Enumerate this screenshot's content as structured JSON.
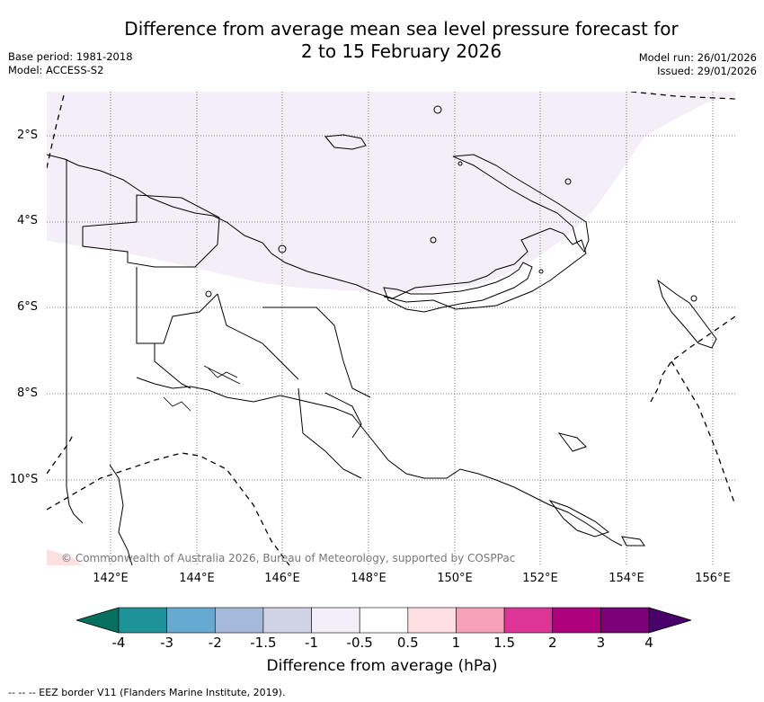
{
  "title": {
    "line1": "Difference from average mean sea level pressure forecast for",
    "line2": "2 to 15 February 2026"
  },
  "meta": {
    "base_period": "Base period: 1981-2018",
    "model": "Model: ACCESS-S2",
    "model_run": "Model run: 26/01/2026",
    "issued": "Issued: 29/01/2026"
  },
  "map": {
    "lat_labels": [
      "2°S",
      "4°S",
      "6°S",
      "8°S",
      "10°S"
    ],
    "lon_labels": [
      "142°E",
      "144°E",
      "146°E",
      "148°E",
      "150°E",
      "152°E",
      "154°E",
      "156°E"
    ],
    "copyright": "© Commonwealth of Australia 2026, Bureau of Meteorology, supported by COSPPac"
  },
  "colorbar": {
    "title": "Difference from average (hPa)",
    "tick_labels": [
      "-4",
      "-3",
      "-2",
      "-1.5",
      "-1",
      "-0.5",
      "0.5",
      "1",
      "1.5",
      "2",
      "3",
      "4"
    ],
    "colors": [
      "#08705f",
      "#1d9299",
      "#66aad4",
      "#a5b9db",
      "#d0d2e6",
      "#f4eef8",
      "#ffffff",
      "#ffdfe0",
      "#f7a0ba",
      "#dd3497",
      "#ae017e",
      "#7a0177",
      "#49006a"
    ],
    "extend_min_color": "#08705f",
    "extend_max_color": "#49006a"
  },
  "legend_note": "--  --  -- EEZ border V11 (Flanders Marine Institute, 2019)."
}
